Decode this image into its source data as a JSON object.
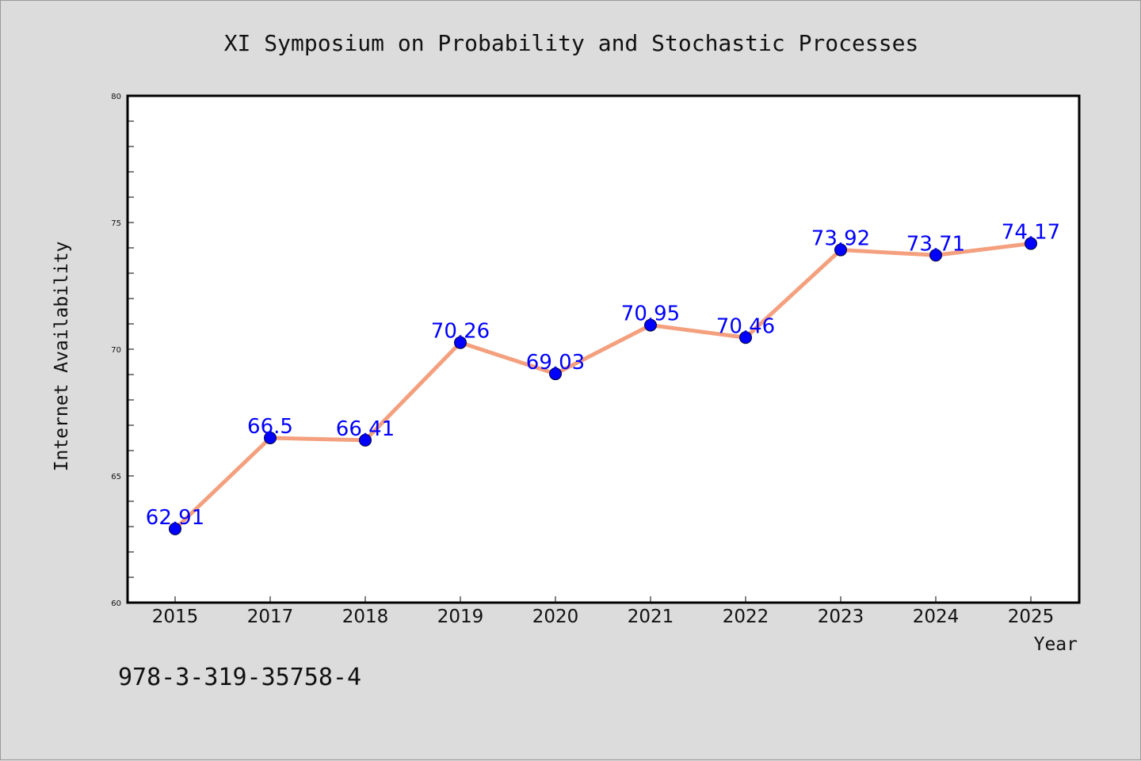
{
  "chart_data": {
    "type": "line",
    "title": "XI Symposium on Probability and Stochastic Processes",
    "xlabel": "Year",
    "ylabel": "Internet Availability",
    "categories": [
      "2015",
      "2017",
      "2018",
      "2019",
      "2020",
      "2021",
      "2022",
      "2023",
      "2024",
      "2025"
    ],
    "series": [
      {
        "values": [
          62.91,
          66.5,
          66.41,
          70.26,
          69.03,
          70.95,
          70.46,
          73.92,
          73.71,
          74.17
        ],
        "labels": [
          "62.91",
          "66.5",
          "66.41",
          "70.26",
          "69.03",
          "70.95",
          "70.46",
          "73.92",
          "73.71",
          "74.17"
        ],
        "line_color": "#f4a07e",
        "marker_color": "#0000ff"
      }
    ],
    "ylim": [
      60,
      80
    ],
    "yticks": [
      "60",
      "65",
      "70",
      "75",
      "80"
    ],
    "grid": false,
    "legend": "none"
  },
  "footer": {
    "isbn": "978-3-319-35758-4"
  }
}
